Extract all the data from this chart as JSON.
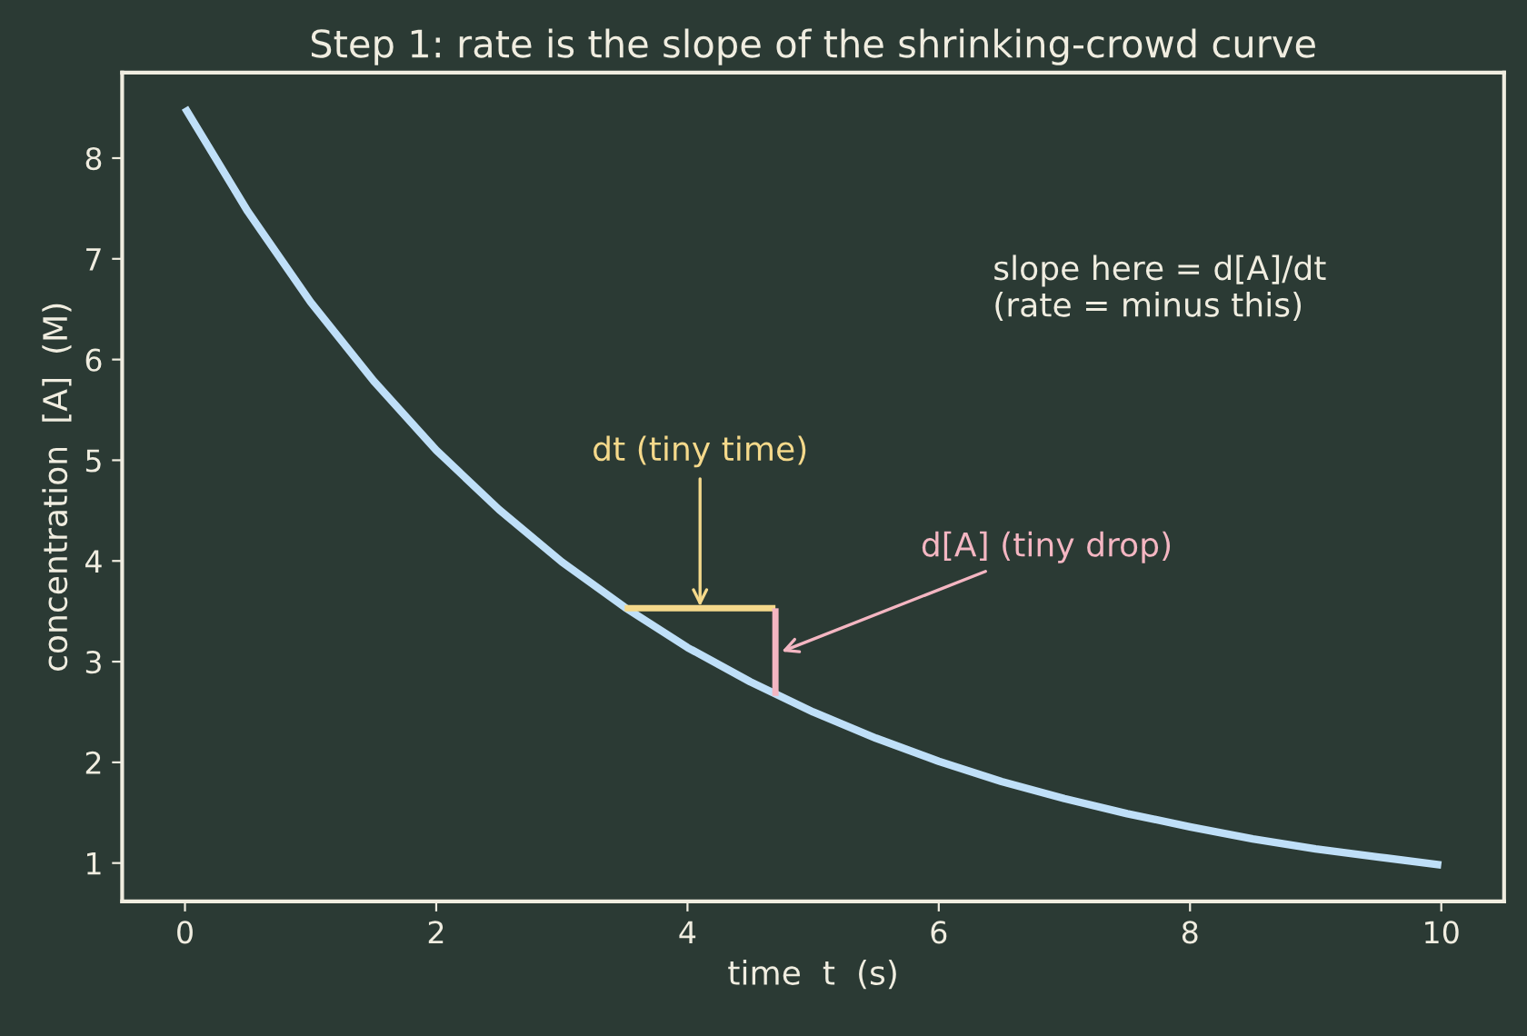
{
  "chart_data": {
    "type": "line",
    "title": "Step 1: rate is the slope of the shrinking-crowd curve",
    "xlabel": "time  t  (s)",
    "ylabel": "concentration  [A]  (M)",
    "series": [
      {
        "color": "#bfdff8",
        "x": [
          0,
          0.5,
          1,
          1.5,
          2,
          2.5,
          3,
          3.5,
          4,
          4.5,
          5,
          5.5,
          6,
          6.5,
          7,
          7.5,
          8,
          8.5,
          9,
          9.5,
          10
        ],
        "values": [
          8.5,
          7.47,
          6.57,
          5.79,
          5.1,
          4.51,
          3.99,
          3.54,
          3.14,
          2.8,
          2.5,
          2.24,
          2.01,
          1.81,
          1.64,
          1.49,
          1.36,
          1.24,
          1.14,
          1.06,
          0.98
        ]
      },
      {
        "color": "#f5d98b",
        "x": [
          3.5,
          4.7
        ],
        "values": [
          3.53,
          3.53
        ]
      },
      {
        "color": "#f4b6c2",
        "x": [
          4.7,
          4.7
        ],
        "values": [
          3.53,
          2.66
        ]
      }
    ],
    "annotations": [
      {
        "text": "dt (tiny time)",
        "x": 4.1,
        "y": 3.55
      },
      {
        "text": "d[A] (tiny drop)",
        "x": 4.75,
        "y": 3.1
      },
      "slope here = d[A]/dt\n(rate = minus this)"
    ],
    "xlim": [
      -0.5,
      10.5
    ],
    "ylim": [
      0.62,
      8.85
    ],
    "xticks": [
      0,
      2,
      4,
      6,
      8,
      10
    ],
    "yticks": [
      1,
      2,
      3,
      4,
      5,
      6,
      7,
      8
    ],
    "grid": false,
    "legend": false
  }
}
